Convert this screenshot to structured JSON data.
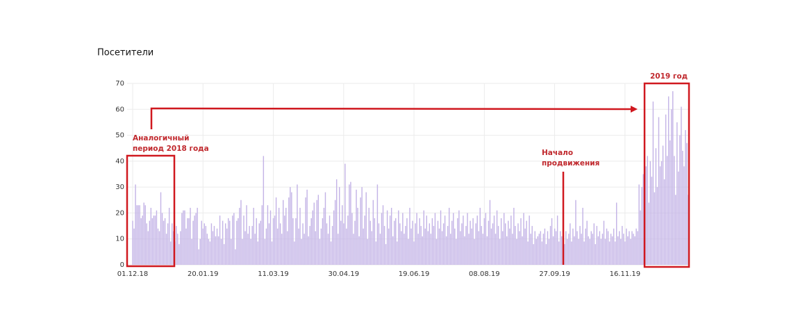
{
  "chart_data": {
    "type": "bar",
    "title": "Посетители",
    "color": "#c3b3e6",
    "grid": true,
    "ylim": [
      0,
      70
    ],
    "yticks": [
      0,
      10,
      20,
      30,
      40,
      50,
      60,
      70
    ],
    "categories": [
      "01.12.18",
      null,
      null,
      null,
      null,
      null,
      null,
      null,
      null,
      null,
      null,
      null,
      null,
      null,
      null,
      null,
      null,
      null,
      null,
      null,
      null,
      null,
      null,
      null,
      null,
      null,
      null,
      null,
      null,
      null,
      null,
      null,
      null,
      null,
      null,
      null,
      null,
      null,
      null,
      null,
      null,
      null,
      null,
      null,
      null,
      null,
      null,
      null,
      null,
      null,
      "20.01.19",
      null,
      null,
      null,
      null,
      null,
      null,
      null,
      null,
      null,
      null,
      null,
      null,
      null,
      null,
      null,
      null,
      null,
      null,
      null,
      null,
      null,
      null,
      null,
      null,
      null,
      null,
      null,
      null,
      null,
      null,
      null,
      null,
      null,
      null,
      null,
      null,
      null,
      null,
      null,
      null,
      null,
      null,
      null,
      null,
      null,
      null,
      null,
      null,
      null,
      "11.03.19",
      null,
      null,
      null,
      null,
      null,
      null,
      null,
      null,
      null,
      null,
      null,
      null,
      null,
      null,
      null,
      null,
      null,
      null,
      null,
      null,
      null,
      null,
      null,
      null,
      null,
      null,
      null,
      null,
      null,
      null,
      null,
      null,
      null,
      null,
      null,
      null,
      null,
      null,
      null,
      null,
      null,
      null,
      null,
      null,
      null,
      null,
      null,
      null,
      null,
      "30.04.19",
      null,
      null,
      null,
      null,
      null,
      null,
      null,
      null,
      null,
      null,
      null,
      null,
      null,
      null,
      null,
      null,
      null,
      null,
      null,
      null,
      null,
      null,
      null,
      null,
      null,
      null,
      null,
      null,
      null,
      null,
      null,
      null,
      null,
      null,
      null,
      null,
      null,
      null,
      null,
      null,
      null,
      null,
      null,
      null,
      null,
      null,
      null,
      null,
      null,
      "19.06.19",
      null,
      null,
      null,
      null,
      null,
      null,
      null,
      null,
      null,
      null,
      null,
      null,
      null,
      null,
      null,
      null,
      null,
      null,
      null,
      null,
      null,
      null,
      null,
      null,
      null,
      null,
      null,
      null,
      null,
      null,
      null,
      null,
      null,
      null,
      null,
      null,
      null,
      null,
      null,
      null,
      null,
      null,
      null,
      null,
      null,
      null,
      null,
      null,
      null,
      "08.08.19",
      null,
      null,
      null,
      null,
      null,
      null,
      null,
      null,
      null,
      null,
      null,
      null,
      null,
      null,
      null,
      null,
      null,
      null,
      null,
      null,
      null,
      null,
      null,
      null,
      null,
      null,
      null,
      null,
      null,
      null,
      null,
      null,
      null,
      null,
      null,
      null,
      null,
      null,
      null,
      null,
      null,
      null,
      null,
      null,
      null,
      null,
      null,
      null,
      null,
      "27.09.19",
      null,
      null,
      null,
      null,
      null,
      null,
      null,
      null,
      null,
      null,
      null,
      null,
      null,
      null,
      null,
      null,
      null,
      null,
      null,
      null,
      null,
      null,
      null,
      null,
      null,
      null,
      null,
      null,
      null,
      null,
      null,
      null,
      null,
      null,
      null,
      null,
      null,
      null,
      null,
      null,
      null,
      null,
      null,
      null,
      null,
      null,
      null,
      null,
      null,
      "16.11.19",
      null,
      null,
      null,
      null,
      null,
      null,
      null,
      null,
      null,
      null,
      null,
      null,
      null,
      null,
      null,
      null,
      null,
      null,
      null,
      null,
      null,
      null,
      null,
      null,
      null,
      null,
      null,
      null,
      null,
      null,
      null,
      null,
      null,
      null,
      null,
      null,
      null,
      null,
      null,
      null,
      null,
      null,
      null,
      null,
      null
    ],
    "values": [
      17,
      14,
      31,
      23,
      23,
      23,
      18,
      19,
      24,
      23,
      16,
      13,
      17,
      22,
      18,
      19,
      19,
      21,
      14,
      13,
      28,
      20,
      17,
      18,
      12,
      16,
      22,
      9,
      16,
      13,
      9,
      15,
      12,
      8,
      13,
      20,
      21,
      21,
      14,
      18,
      18,
      22,
      10,
      17,
      19,
      20,
      22,
      6,
      10,
      17,
      14,
      16,
      15,
      12,
      10,
      9,
      16,
      13,
      15,
      11,
      14,
      11,
      19,
      10,
      17,
      8,
      16,
      14,
      18,
      17,
      10,
      19,
      20,
      6,
      17,
      18,
      22,
      25,
      10,
      19,
      13,
      23,
      12,
      15,
      10,
      15,
      22,
      12,
      18,
      9,
      16,
      17,
      23,
      42,
      10,
      14,
      23,
      16,
      21,
      9,
      18,
      19,
      26,
      14,
      22,
      16,
      12,
      25,
      19,
      22,
      13,
      26,
      30,
      28,
      18,
      9,
      18,
      31,
      14,
      22,
      10,
      16,
      12,
      26,
      29,
      11,
      15,
      18,
      21,
      24,
      13,
      25,
      27,
      10,
      14,
      18,
      22,
      28,
      16,
      12,
      19,
      9,
      15,
      21,
      25,
      33,
      12,
      30,
      17,
      23,
      16,
      39,
      14,
      19,
      31,
      32,
      20,
      12,
      17,
      29,
      22,
      11,
      26,
      30,
      14,
      19,
      28,
      10,
      22,
      17,
      13,
      25,
      18,
      9,
      31,
      16,
      12,
      20,
      23,
      15,
      8,
      21,
      14,
      19,
      22,
      11,
      17,
      18,
      9,
      21,
      16,
      13,
      20,
      12,
      15,
      18,
      10,
      22,
      14,
      17,
      9,
      16,
      20,
      12,
      18,
      15,
      11,
      21,
      14,
      19,
      13,
      16,
      12,
      18,
      15,
      20,
      10,
      17,
      14,
      21,
      13,
      16,
      19,
      11,
      15,
      22,
      12,
      17,
      20,
      14,
      10,
      18,
      21,
      13,
      16,
      19,
      11,
      15,
      20,
      12,
      17,
      14,
      18,
      10,
      16,
      19,
      13,
      22,
      15,
      12,
      18,
      20,
      11,
      17,
      25,
      14,
      16,
      19,
      12,
      21,
      15,
      10,
      18,
      13,
      20,
      16,
      11,
      17,
      14,
      19,
      12,
      22,
      15,
      10,
      16,
      13,
      18,
      11,
      20,
      14,
      17,
      9,
      19,
      12,
      15,
      8,
      13,
      10,
      11,
      12,
      13,
      9,
      12,
      14,
      8,
      13,
      10,
      15,
      18,
      11,
      14,
      13,
      19,
      9,
      13,
      11,
      15,
      8,
      13,
      10,
      12,
      16,
      9,
      14,
      11,
      25,
      13,
      10,
      15,
      12,
      22,
      9,
      14,
      17,
      11,
      10,
      13,
      12,
      16,
      8,
      15,
      11,
      13,
      10,
      12,
      17,
      10,
      14,
      13,
      9,
      12,
      11,
      14,
      9,
      24,
      11,
      13,
      10,
      15,
      12,
      9,
      14,
      11,
      13,
      10,
      13,
      12,
      11,
      14,
      13,
      31,
      21,
      30,
      35,
      43,
      38,
      42,
      24,
      40,
      34,
      63,
      28,
      45,
      30,
      57,
      38,
      40,
      46,
      33,
      58,
      42,
      65,
      48,
      60,
      67,
      42,
      27,
      55,
      36,
      50,
      61,
      44,
      38,
      52,
      47,
      27
    ],
    "annotations": [
      {
        "lines": [
          "Аналогичный",
          "период 2018 года"
        ]
      },
      {
        "lines": [
          "Начало",
          "продвижения"
        ]
      },
      {
        "lines": [
          "2019 год"
        ]
      }
    ]
  }
}
